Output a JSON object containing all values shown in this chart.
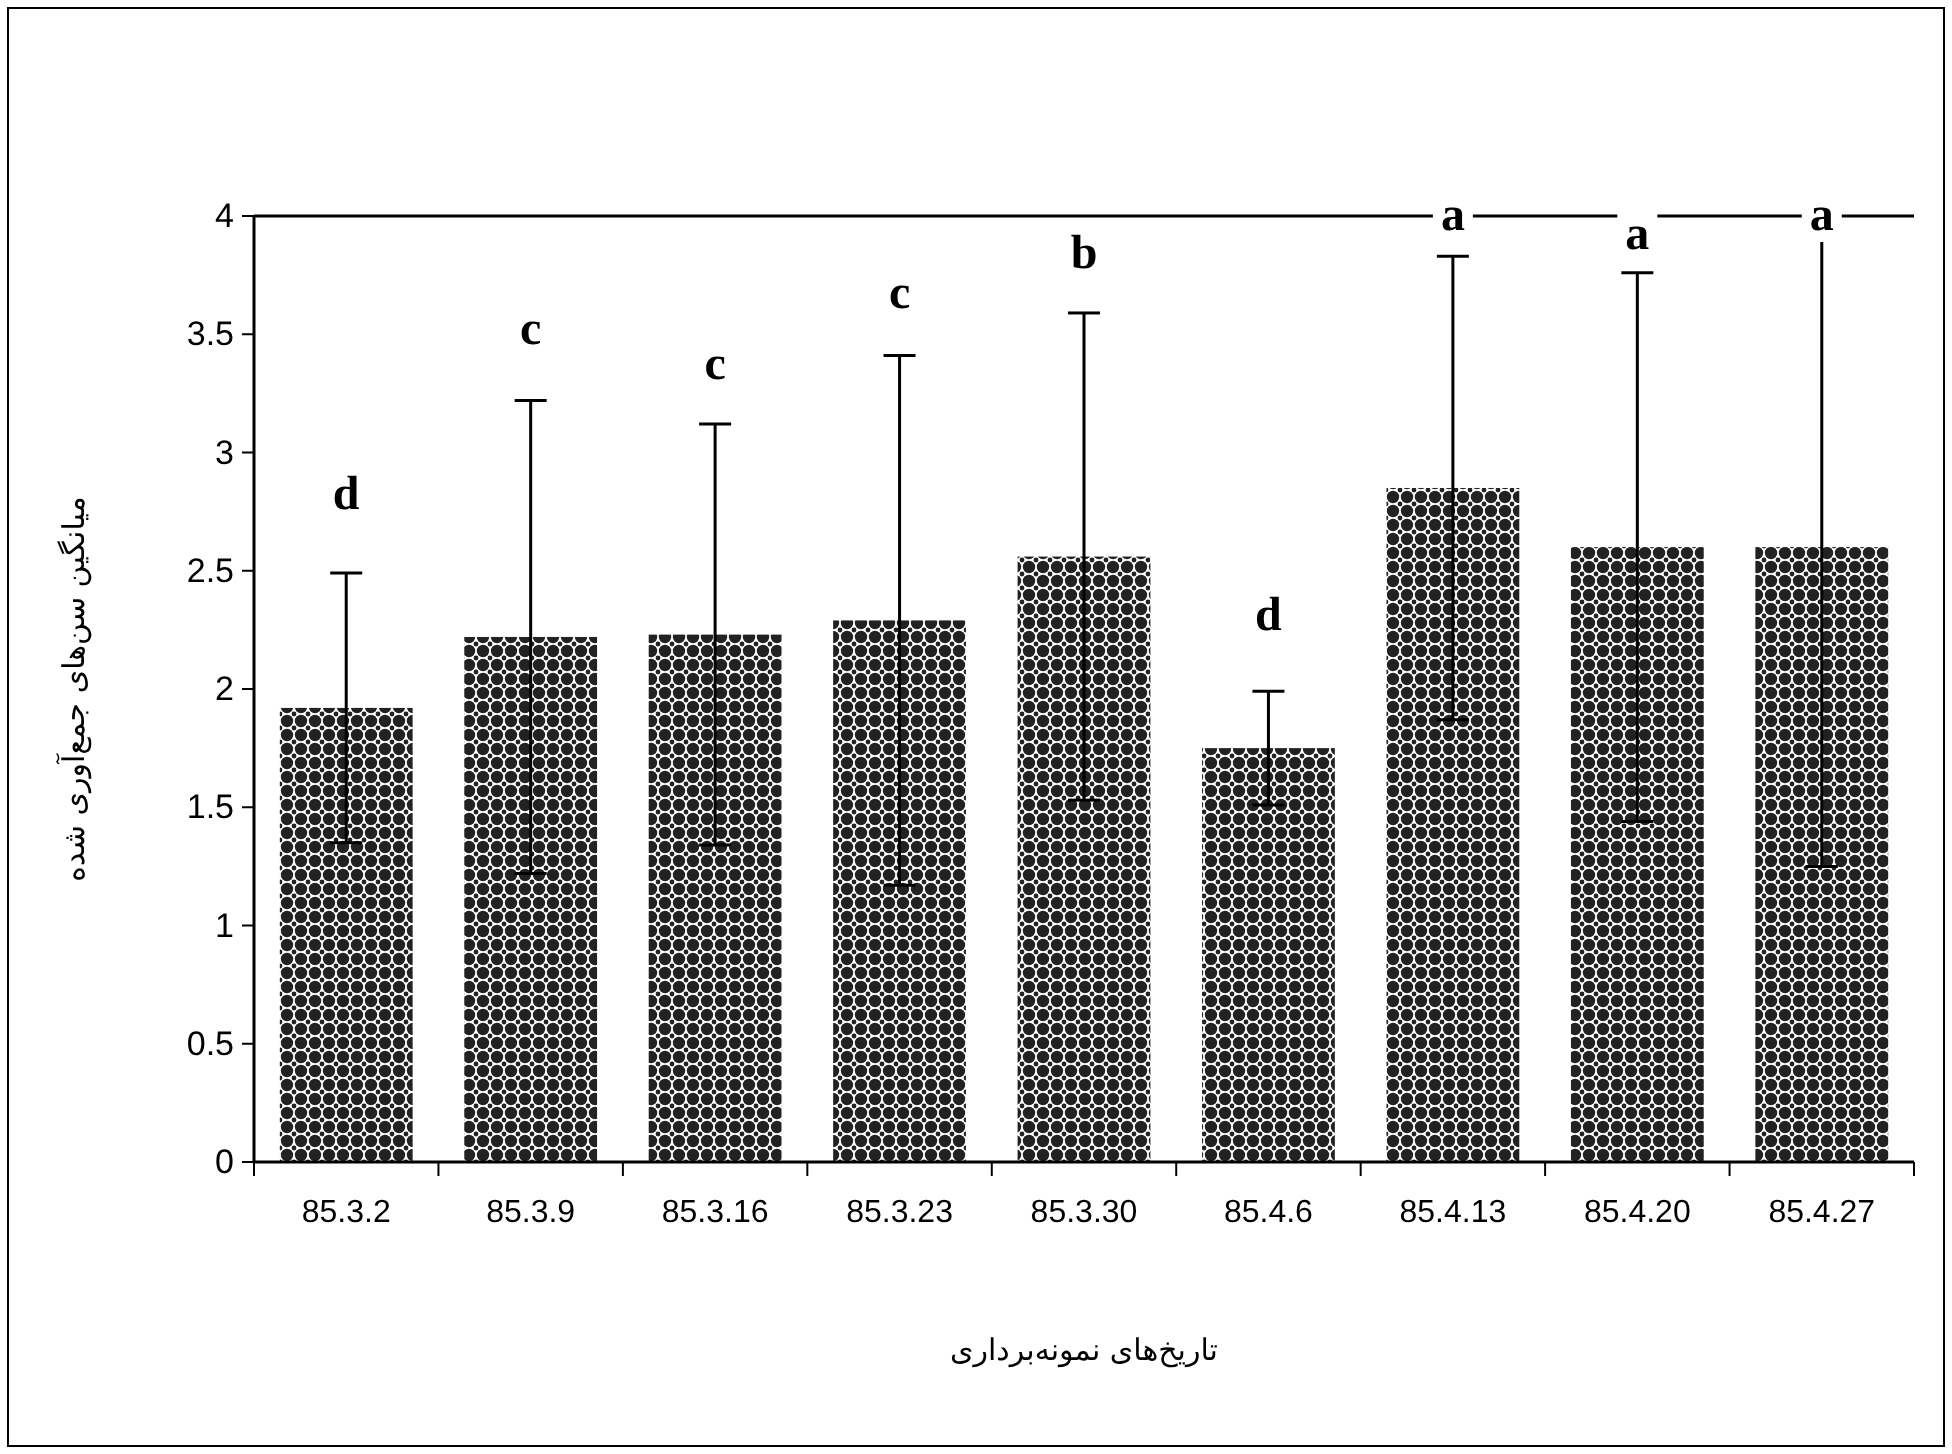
{
  "chart_data": {
    "type": "bar",
    "categories": [
      "85.3.2",
      "85.3.9",
      "85.3.16",
      "85.3.23",
      "85.3.30",
      "85.4.6",
      "85.4.13",
      "85.4.20",
      "85.4.27"
    ],
    "values": [
      1.92,
      2.22,
      2.23,
      2.29,
      2.56,
      1.75,
      2.85,
      2.6,
      2.6
    ],
    "errors": [
      0.57,
      1.0,
      0.89,
      1.12,
      1.03,
      0.24,
      0.98,
      1.16,
      1.35
    ],
    "color": "#222222",
    "ylim": [
      0,
      4
    ],
    "yticks": [
      0,
      0.5,
      1,
      1.5,
      2,
      2.5,
      3,
      3.5,
      4
    ],
    "xlabel": "تاریخ‌های نمونه‌برداری",
    "ylabel": "میانگین سن‌های جمع‌آوری شده",
    "annotations": [
      {
        "text": "d",
        "x": "85.3.2",
        "y": 2.82
      },
      {
        "text": "c",
        "x": "85.3.9",
        "y": 3.52
      },
      {
        "text": "c",
        "x": "85.3.16",
        "y": 3.37
      },
      {
        "text": "c",
        "x": "85.3.23",
        "y": 3.67
      },
      {
        "text": "b",
        "x": "85.3.30",
        "y": 3.84
      },
      {
        "text": "d",
        "x": "85.4.6",
        "y": 2.31
      },
      {
        "text": "a",
        "x": "85.4.13",
        "y": 4.0
      },
      {
        "text": "a",
        "x": "85.4.20",
        "y": 3.92
      },
      {
        "text": "a",
        "x": "85.4.27",
        "y": 4.0
      }
    ],
    "grid": false
  }
}
